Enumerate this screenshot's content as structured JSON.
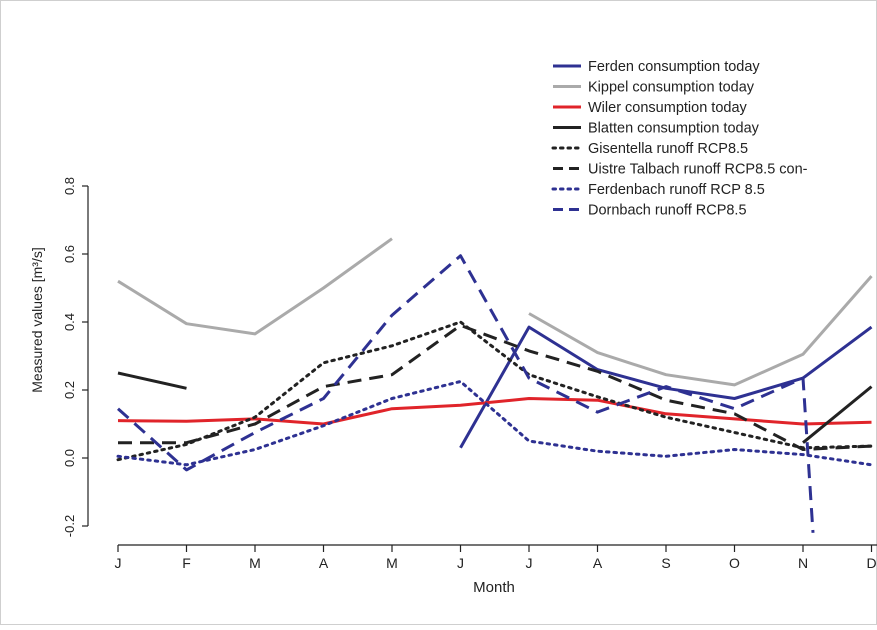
{
  "chart_data": {
    "type": "line",
    "xlabel": "Month",
    "ylabel": "Measured values [m³/s]",
    "categories": [
      "J",
      "F",
      "M",
      "A",
      "M",
      "J",
      "J",
      "A",
      "S",
      "O",
      "N",
      "D"
    ],
    "ylim": [
      -0.2,
      0.8
    ],
    "yticks": [
      -0.2,
      0.0,
      0.2,
      0.4,
      0.6,
      0.8
    ],
    "ytick_labels": [
      "-0.2",
      "0.0",
      "0.2",
      "0.4",
      "0.6",
      "0.8"
    ],
    "grid": false,
    "legend_position": "top-right",
    "series": [
      {
        "name": "Ferden consumption today",
        "color": "#2e3192",
        "style": "solid",
        "values": [
          null,
          null,
          null,
          null,
          null,
          0.03,
          0.385,
          0.26,
          0.205,
          0.175,
          0.235,
          0.385
        ]
      },
      {
        "name": "Kippel consumption today",
        "color": "#aaaaaa",
        "style": "solid",
        "values": [
          0.52,
          0.395,
          0.365,
          0.5,
          0.645,
          null,
          0.425,
          0.31,
          0.245,
          0.215,
          0.305,
          0.535
        ]
      },
      {
        "name": "Wiler consumption today",
        "color": "#e0242a",
        "style": "solid",
        "values": [
          0.11,
          0.108,
          0.115,
          0.1,
          0.145,
          0.155,
          0.175,
          0.17,
          0.13,
          0.115,
          0.1,
          0.105
        ]
      },
      {
        "name": "Blatten consumption today",
        "color": "#222222",
        "style": "solid",
        "values": [
          0.25,
          0.205,
          null,
          null,
          null,
          null,
          null,
          null,
          null,
          null,
          0.045,
          0.21
        ]
      },
      {
        "name": "Gisentella runoff RCP8.5",
        "color": "#222222",
        "style": "dotted",
        "values": [
          -0.005,
          0.04,
          0.12,
          0.28,
          0.33,
          0.4,
          0.245,
          0.18,
          0.12,
          0.075,
          0.03,
          0.035
        ]
      },
      {
        "name": "Uistre Talbach runoff RCP8.5 con-",
        "color": "#222222",
        "style": "dashed",
        "values": [
          0.045,
          0.045,
          0.1,
          0.21,
          0.245,
          0.39,
          0.315,
          0.255,
          0.17,
          0.13,
          0.025,
          0.035
        ]
      },
      {
        "name": "Ferdenbach runoff RCP 8.5",
        "color": "#2e3192",
        "style": "dotted",
        "values": [
          0.005,
          -0.02,
          0.025,
          0.095,
          0.175,
          0.225,
          0.05,
          0.02,
          0.005,
          0.025,
          0.01,
          -0.02
        ]
      },
      {
        "name": "Dornbach runoff RCP8.5",
        "color": "#2e3192",
        "style": "dashed",
        "values": [
          0.145,
          -0.035,
          0.075,
          0.175,
          0.42,
          0.595,
          0.235,
          0.135,
          0.21,
          0.145,
          0.235,
          null
        ],
        "tail_to": -0.22
      }
    ]
  }
}
